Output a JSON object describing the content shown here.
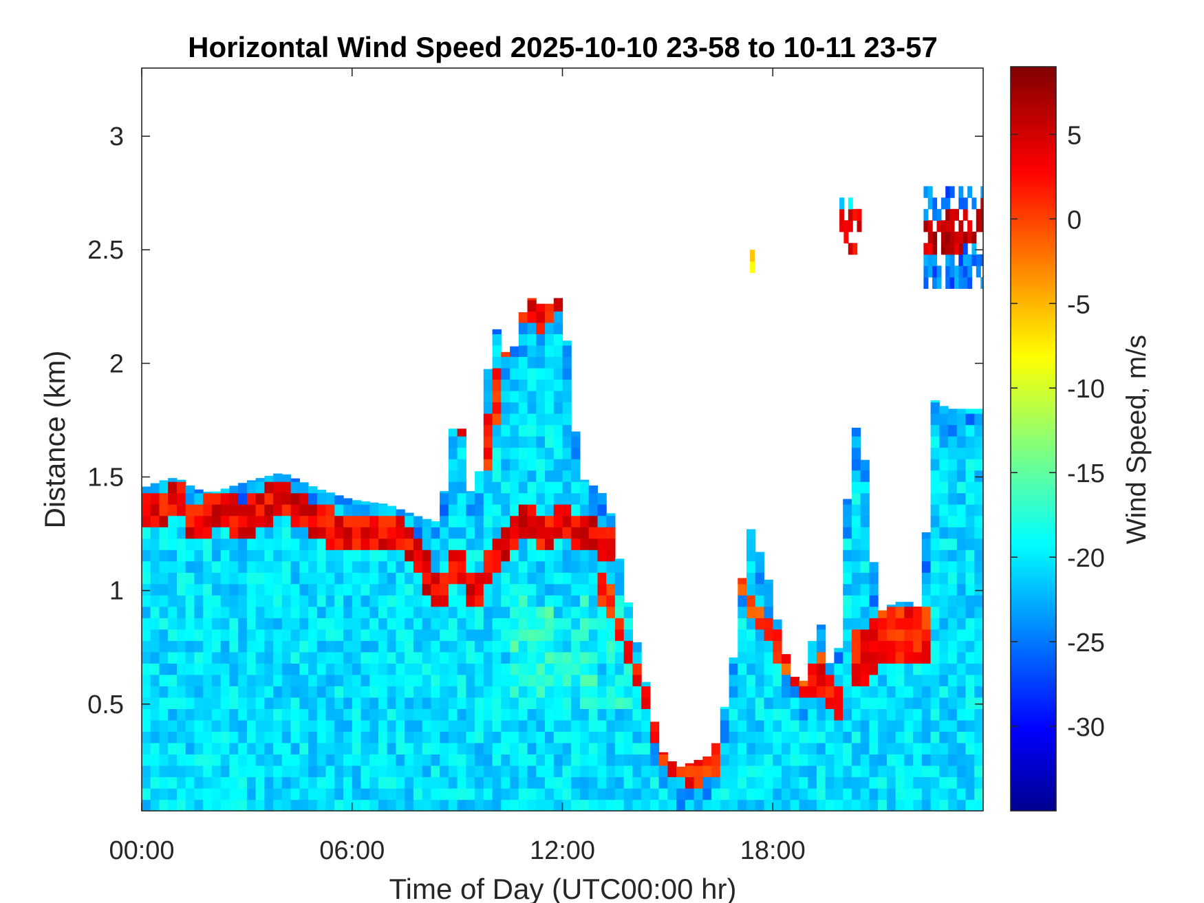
{
  "chart_data": {
    "type": "heatmap",
    "title": "Horizontal Wind Speed 2025-10-10 23-58 to 10-11 23-57",
    "xlabel": "Time of Day (UTC00:00 hr)",
    "ylabel": "Distance (km)",
    "x_unit": "hour of day",
    "xlim": [
      0,
      24
    ],
    "ylim": [
      0.03,
      3.3
    ],
    "x_ticks": [
      {
        "value": 0,
        "label": "00:00"
      },
      {
        "value": 6,
        "label": "06:00"
      },
      {
        "value": 12,
        "label": "12:00"
      },
      {
        "value": 18,
        "label": "18:00"
      }
    ],
    "y_ticks": [
      {
        "value": 0.5,
        "label": "0.5"
      },
      {
        "value": 1,
        "label": "1"
      },
      {
        "value": 1.5,
        "label": "1.5"
      },
      {
        "value": 2,
        "label": "2"
      },
      {
        "value": 2.5,
        "label": "2.5"
      },
      {
        "value": 3,
        "label": "3"
      }
    ],
    "colorbar": {
      "label": "Wind Speed, m/s",
      "range": [
        -35,
        9
      ],
      "colormap": "jet",
      "colormap_stops": [
        "#00008f",
        "#0000ff",
        "#00ffff",
        "#ffff00",
        "#ff0000",
        "#800000"
      ],
      "ticks": [
        {
          "value": 5,
          "label": "5"
        },
        {
          "value": 0,
          "label": "0"
        },
        {
          "value": -5,
          "label": "-5"
        },
        {
          "value": -10,
          "label": "-10"
        },
        {
          "value": -15,
          "label": "-15"
        },
        {
          "value": -20,
          "label": "-20"
        },
        {
          "value": -25,
          "label": "-25"
        },
        {
          "value": -30,
          "label": "-30"
        }
      ]
    },
    "grid": false,
    "time_step_hours": 0.25,
    "typical_speed_ms": -20.5,
    "data_top_envelope": {
      "x": [
        0,
        0.5,
        1,
        1.5,
        2,
        3,
        4,
        5,
        6,
        7,
        7.5,
        8,
        8.5,
        9,
        9.5,
        10,
        10.5,
        11,
        11.5,
        12,
        12.5,
        13,
        13.3,
        13.8,
        14.3,
        14.8,
        15.3,
        15.8,
        16.3,
        16.8,
        17.3,
        17.8,
        18.3,
        18.8,
        19.3,
        19.6,
        19.8,
        20.2,
        20.5,
        21,
        21.5,
        22,
        22.3,
        22.5,
        23,
        23.5,
        24
      ],
      "y": [
        1.45,
        1.48,
        1.5,
        1.45,
        1.43,
        1.48,
        1.52,
        1.45,
        1.4,
        1.38,
        1.35,
        1.32,
        1.3,
        1.85,
        1.3,
        2.2,
        2.0,
        2.3,
        2.25,
        2.3,
        1.5,
        1.45,
        1.4,
        1.0,
        0.65,
        0.3,
        0.22,
        0.25,
        0.28,
        0.6,
        1.3,
        1.1,
        0.75,
        0.55,
        0.9,
        0.7,
        0.55,
        1.6,
        1.8,
        0.9,
        0.95,
        0.95,
        0.9,
        1.85,
        1.8,
        1.8,
        1.8
      ]
    },
    "features": [
      {
        "name": "jet_band",
        "value": 3.5,
        "x": [
          0,
          0.5,
          1,
          1.5,
          2,
          3,
          4,
          5,
          6,
          7,
          7.5,
          8,
          8.5,
          9,
          9.5,
          10,
          10.5,
          11,
          11.5,
          12,
          12.5,
          13,
          13.2
        ],
        "y": [
          1.38,
          1.35,
          1.45,
          1.28,
          1.35,
          1.32,
          1.42,
          1.3,
          1.25,
          1.27,
          1.25,
          1.12,
          0.95,
          1.15,
          0.95,
          1.15,
          1.25,
          1.35,
          1.25,
          1.3,
          1.25,
          1.25,
          1.2
        ],
        "thickness": 0.08
      },
      {
        "name": "jet_band",
        "value": 1.5,
        "x": [
          10,
          10.2,
          10.4
        ],
        "y": [
          1.65,
          2.0,
          2.2
        ],
        "thickness": 0.12
      },
      {
        "name": "jet_band",
        "value": 2.5,
        "x": [
          8.9,
          9.2
        ],
        "y": [
          1.85,
          1.75
        ],
        "thickness": 0.1
      },
      {
        "name": "jet_band",
        "value": 3.0,
        "x": [
          11,
          11.4,
          11.8,
          12.1
        ],
        "y": [
          2.25,
          2.22,
          2.27,
          2.3
        ],
        "thickness": 0.07
      },
      {
        "name": "jet_band",
        "value": 2.0,
        "x": [
          13.3,
          13.8,
          14.3,
          14.8,
          15.3,
          15.8,
          16.3
        ],
        "y": [
          1.0,
          0.75,
          0.55,
          0.33,
          0.22,
          0.2,
          0.25
        ],
        "thickness": 0.06
      },
      {
        "name": "jet_band",
        "value": 1.0,
        "x": [
          16.9,
          17.3,
          17.8,
          18.3,
          18.8,
          19.2
        ],
        "y": [
          1.15,
          0.95,
          0.85,
          0.7,
          0.6,
          0.65
        ],
        "thickness": 0.06
      },
      {
        "name": "jet_band",
        "value": 3.0,
        "x": [
          19.3,
          19.6,
          19.8
        ],
        "y": [
          0.62,
          0.56,
          0.52
        ],
        "thickness": 0.08
      },
      {
        "name": "jet_band",
        "value": 2.0,
        "x": [
          20.6,
          21,
          21.5,
          22,
          22.3
        ],
        "y": [
          0.72,
          0.8,
          0.82,
          0.78,
          0.82
        ],
        "thickness": 0.12
      },
      {
        "name": "jet_band",
        "value": 5.5,
        "x": [
          22.5,
          23,
          23.5,
          24
        ],
        "y": [
          2.55,
          2.57,
          2.6,
          2.62
        ],
        "thickness": 0.09
      },
      {
        "name": "jet_band",
        "value": 3.5,
        "x": [
          20.0,
          20.3
        ],
        "y": [
          2.6,
          2.58
        ],
        "thickness": 0.09
      }
    ],
    "upper_echoes": [
      {
        "x": [
          22.3,
          24
        ],
        "y": [
          2.33,
          2.75
        ],
        "value": -25
      },
      {
        "x": [
          19.9,
          20.5
        ],
        "y": [
          2.48,
          2.72
        ],
        "value": -21
      },
      {
        "x": [
          17.35,
          17.45
        ],
        "y": [
          2.4,
          2.47
        ],
        "value": -8
      }
    ]
  }
}
